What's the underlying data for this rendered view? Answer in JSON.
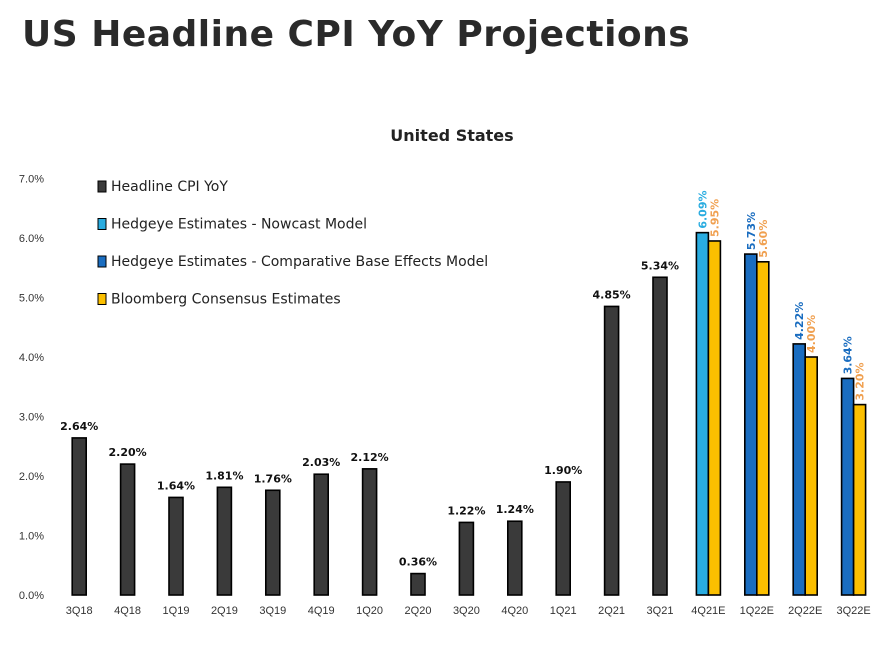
{
  "header": {
    "title": "US Headline CPI YoY Projections"
  },
  "colors": {
    "headline": "#3a3a3a",
    "nowcast": "#29ace0",
    "comparative": "#1a6dc0",
    "bloomberg": "#fbbf00",
    "label_dark": "#111111",
    "label_orange": "#f0a050"
  },
  "chart_data": {
    "type": "bar",
    "title": "United States",
    "xlabel": "",
    "ylabel": "",
    "ylim": [
      0,
      7
    ],
    "yticks": [
      "0.0%",
      "1.0%",
      "2.0%",
      "3.0%",
      "4.0%",
      "5.0%",
      "6.0%",
      "7.0%"
    ],
    "grid": false,
    "legend_position": "top-left",
    "categories": [
      "3Q18",
      "4Q18",
      "1Q19",
      "2Q19",
      "3Q19",
      "4Q19",
      "1Q20",
      "2Q20",
      "3Q20",
      "4Q20",
      "1Q21",
      "2Q21",
      "3Q21",
      "4Q21E",
      "1Q22E",
      "2Q22E",
      "3Q22E"
    ],
    "series": [
      {
        "name": "Headline CPI YoY",
        "color": "#3a3a3a",
        "label_color": "#111111",
        "values": [
          2.64,
          2.2,
          1.64,
          1.81,
          1.76,
          2.03,
          2.12,
          0.36,
          1.22,
          1.24,
          1.9,
          4.85,
          5.34,
          null,
          null,
          null,
          null
        ],
        "labels": [
          "2.64%",
          "2.20%",
          "1.64%",
          "1.81%",
          "1.76%",
          "2.03%",
          "2.12%",
          "0.36%",
          "1.22%",
          "1.24%",
          "1.90%",
          "4.85%",
          "5.34%",
          null,
          null,
          null,
          null
        ]
      },
      {
        "name": "Hedgeye Estimates - Nowcast Model",
        "color": "#29ace0",
        "label_color": "#29ace0",
        "values": [
          null,
          null,
          null,
          null,
          null,
          null,
          null,
          null,
          null,
          null,
          null,
          null,
          null,
          6.09,
          null,
          null,
          null
        ],
        "labels": [
          null,
          null,
          null,
          null,
          null,
          null,
          null,
          null,
          null,
          null,
          null,
          null,
          null,
          "6.09%",
          null,
          null,
          null
        ]
      },
      {
        "name": "Hedgeye Estimates - Comparative Base Effects Model",
        "color": "#1a6dc0",
        "label_color": "#1a6dc0",
        "values": [
          null,
          null,
          null,
          null,
          null,
          null,
          null,
          null,
          null,
          null,
          null,
          null,
          null,
          null,
          5.73,
          4.22,
          3.64
        ],
        "labels": [
          null,
          null,
          null,
          null,
          null,
          null,
          null,
          null,
          null,
          null,
          null,
          null,
          null,
          null,
          "5.73%",
          "4.22%",
          "3.64%"
        ]
      },
      {
        "name": "Bloomberg Consensus Estimates",
        "color": "#fbbf00",
        "label_color": "#f0a050",
        "values": [
          null,
          null,
          null,
          null,
          null,
          null,
          null,
          null,
          null,
          null,
          null,
          null,
          null,
          5.95,
          5.6,
          4.0,
          3.2
        ],
        "labels": [
          null,
          null,
          null,
          null,
          null,
          null,
          null,
          null,
          null,
          null,
          null,
          null,
          null,
          "5.95%",
          "5.60%",
          "4.00%",
          "3.20%"
        ]
      }
    ]
  }
}
